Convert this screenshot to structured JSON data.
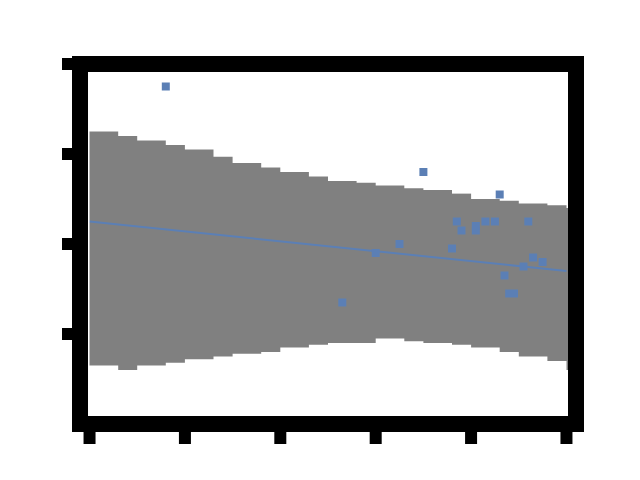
{
  "chart_data": {
    "type": "scatter",
    "title": "",
    "xlabel": "",
    "ylabel": "",
    "xlim": [
      -0.1,
      5.1
    ],
    "ylim": [
      -2.0,
      2.0
    ],
    "grid": false,
    "legend": "none",
    "colors": {
      "points": "#5b7fb5",
      "fit_line": "#5b7fb5",
      "confidence_band": "#808080",
      "frame": "#000000"
    },
    "x": [
      0.8,
      3.5,
      2.65,
      3.0,
      3.25,
      3.8,
      3.9,
      3.85,
      4.05,
      4.05,
      4.15,
      4.25,
      4.3,
      4.35,
      4.4,
      4.45,
      4.55,
      4.6,
      4.65,
      4.75
    ],
    "y": [
      1.75,
      0.8,
      -0.65,
      -0.1,
      0.0,
      -0.05,
      0.15,
      0.25,
      0.2,
      0.15,
      0.25,
      0.25,
      0.55,
      -0.35,
      -0.55,
      -0.55,
      -0.25,
      0.25,
      -0.15,
      -0.2
    ],
    "fit": {
      "x": [
        0.0,
        5.0
      ],
      "y": [
        0.25,
        -0.3
      ]
    },
    "confidence_band": {
      "x": [
        0.0,
        0.3,
        0.5,
        0.8,
        1.0,
        1.3,
        1.5,
        1.8,
        2.0,
        2.3,
        2.5,
        2.8,
        3.0,
        3.3,
        3.5,
        3.8,
        4.0,
        4.3,
        4.5,
        4.8,
        5.0
      ],
      "upper": [
        1.25,
        1.2,
        1.15,
        1.1,
        1.05,
        0.97,
        0.9,
        0.85,
        0.8,
        0.75,
        0.7,
        0.68,
        0.65,
        0.62,
        0.6,
        0.56,
        0.5,
        0.48,
        0.45,
        0.43,
        0.4
      ],
      "lower": [
        -1.35,
        -1.4,
        -1.35,
        -1.32,
        -1.28,
        -1.25,
        -1.22,
        -1.2,
        -1.15,
        -1.12,
        -1.1,
        -1.1,
        -1.05,
        -1.08,
        -1.1,
        -1.12,
        -1.15,
        -1.2,
        -1.25,
        -1.3,
        -1.4
      ]
    }
  }
}
